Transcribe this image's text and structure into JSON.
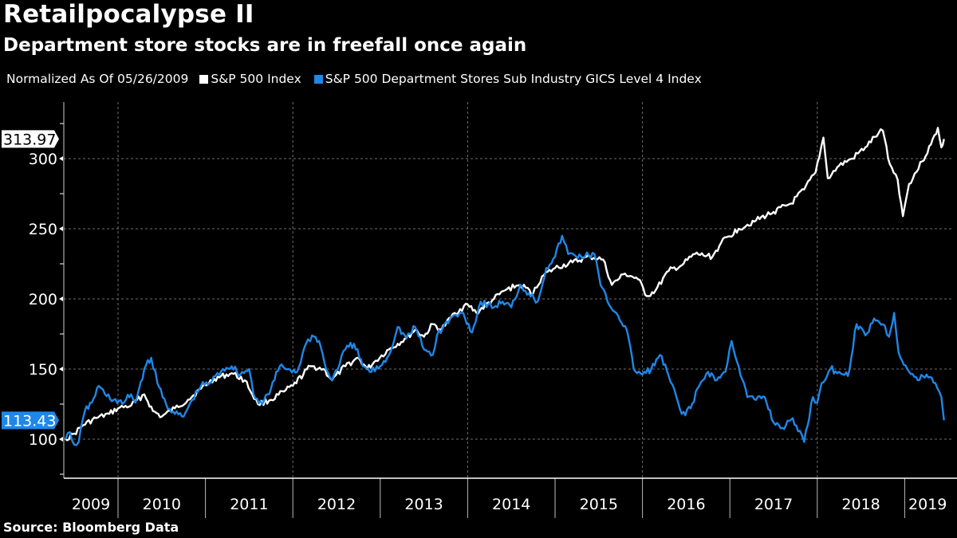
{
  "header": {
    "title": "Retailpocalypse II",
    "subtitle": "Department store stocks are in freefall once again"
  },
  "legend": {
    "note": "Normalized As Of 05/26/2009",
    "items": [
      {
        "label": "S&P 500 Index",
        "color": "#ffffff"
      },
      {
        "label": "S&P 500 Department Stores Sub Industry GICS Level 4 Index",
        "color": "#1f87e8"
      }
    ]
  },
  "footer": {
    "source": "Source: Bloomberg Data"
  },
  "chart_data": {
    "type": "line",
    "title": "Retailpocalypse II",
    "subtitle": "Department store stocks are in freefall once again",
    "xlabel": "",
    "ylabel": "",
    "ylim": [
      72,
      340
    ],
    "xlim": [
      2009.38,
      2019.55
    ],
    "yticks": [
      100,
      150,
      200,
      250,
      300
    ],
    "yminor_ticks": [
      75,
      125,
      175,
      225,
      275,
      325
    ],
    "x_categories": [
      "2009",
      "2010",
      "2011",
      "2012",
      "2013",
      "2014",
      "2015",
      "2016",
      "2017",
      "2018",
      "2019"
    ],
    "grid": true,
    "legend_position": "top-left",
    "last_values": [
      {
        "series": "S&P 500 Index",
        "value": "313.97",
        "color": "#ffffff",
        "text_color": "#000000"
      },
      {
        "series": "S&P 500 Department Stores Sub Industry GICS Level 4 Index",
        "value": "113.43",
        "color": "#1f87e8",
        "text_color": "#ffffff"
      }
    ],
    "series": [
      {
        "name": "S&P 500 Index",
        "color": "#ffffff",
        "x": [
          2009.4,
          2009.5,
          2009.6,
          2009.75,
          2009.9,
          2010.0,
          2010.15,
          2010.3,
          2010.4,
          2010.5,
          2010.65,
          2010.8,
          2010.95,
          2011.1,
          2011.3,
          2011.45,
          2011.6,
          2011.75,
          2011.9,
          2012.0,
          2012.2,
          2012.35,
          2012.45,
          2012.6,
          2012.75,
          2012.85,
          2012.95,
          2013.1,
          2013.3,
          2013.4,
          2013.5,
          2013.6,
          2013.7,
          2013.85,
          2014.0,
          2014.1,
          2014.3,
          2014.45,
          2014.6,
          2014.75,
          2014.85,
          2015.0,
          2015.2,
          2015.4,
          2015.55,
          2015.65,
          2015.8,
          2015.95,
          2016.05,
          2016.15,
          2016.3,
          2016.45,
          2016.6,
          2016.8,
          2016.9,
          2017.1,
          2017.3,
          2017.5,
          2017.7,
          2017.85,
          2017.98,
          2018.07,
          2018.12,
          2018.25,
          2018.4,
          2018.55,
          2018.7,
          2018.75,
          2018.83,
          2018.92,
          2018.98,
          2019.05,
          2019.2,
          2019.3,
          2019.38,
          2019.42,
          2019.45
        ],
        "values": [
          100,
          104,
          110,
          115,
          118,
          122,
          124,
          132,
          120,
          116,
          122,
          128,
          136,
          143,
          147,
          142,
          125,
          128,
          134,
          138,
          152,
          150,
          142,
          152,
          158,
          150,
          156,
          164,
          172,
          178,
          173,
          182,
          178,
          190,
          196,
          190,
          200,
          207,
          210,
          204,
          216,
          222,
          226,
          230,
          228,
          210,
          218,
          214,
          202,
          206,
          220,
          224,
          232,
          230,
          240,
          250,
          256,
          262,
          268,
          278,
          290,
          315,
          286,
          295,
          300,
          308,
          318,
          320,
          296,
          285,
          259,
          282,
          298,
          310,
          322,
          308,
          313.97
        ]
      },
      {
        "name": "S&P 500 Department Stores Sub Industry GICS Level 4 Index",
        "color": "#1f87e8",
        "x": [
          2009.4,
          2009.45,
          2009.5,
          2009.55,
          2009.62,
          2009.7,
          2009.78,
          2009.85,
          2009.95,
          2010.05,
          2010.15,
          2010.2,
          2010.3,
          2010.38,
          2010.45,
          2010.55,
          2010.65,
          2010.75,
          2010.85,
          2010.95,
          2011.05,
          2011.2,
          2011.3,
          2011.4,
          2011.5,
          2011.55,
          2011.65,
          2011.75,
          2011.85,
          2011.95,
          2012.05,
          2012.15,
          2012.22,
          2012.3,
          2012.38,
          2012.45,
          2012.6,
          2012.7,
          2012.8,
          2012.9,
          2013.0,
          2013.1,
          2013.2,
          2013.3,
          2013.4,
          2013.5,
          2013.6,
          2013.65,
          2013.8,
          2013.95,
          2014.05,
          2014.15,
          2014.3,
          2014.4,
          2014.5,
          2014.6,
          2014.7,
          2014.8,
          2014.9,
          2015.0,
          2015.08,
          2015.15,
          2015.3,
          2015.45,
          2015.52,
          2015.6,
          2015.7,
          2015.82,
          2015.9,
          2016.0,
          2016.1,
          2016.2,
          2016.3,
          2016.45,
          2016.55,
          2016.65,
          2016.75,
          2016.85,
          2016.95,
          2017.02,
          2017.1,
          2017.2,
          2017.3,
          2017.4,
          2017.5,
          2017.6,
          2017.7,
          2017.8,
          2017.85,
          2017.95,
          2018.0,
          2018.05,
          2018.15,
          2018.25,
          2018.35,
          2018.45,
          2018.55,
          2018.65,
          2018.75,
          2018.82,
          2018.88,
          2018.93,
          2019.05,
          2019.15,
          2019.25,
          2019.35,
          2019.42,
          2019.45
        ],
        "values": [
          100,
          105,
          96,
          98,
          120,
          126,
          138,
          132,
          128,
          125,
          132,
          126,
          150,
          158,
          140,
          125,
          118,
          116,
          128,
          138,
          140,
          150,
          152,
          146,
          150,
          132,
          125,
          136,
          152,
          150,
          148,
          168,
          174,
          170,
          150,
          142,
          164,
          168,
          152,
          148,
          152,
          160,
          180,
          172,
          180,
          164,
          160,
          174,
          186,
          190,
          176,
          198,
          194,
          198,
          194,
          210,
          204,
          198,
          222,
          230,
          245,
          232,
          230,
          232,
          210,
          198,
          190,
          178,
          150,
          146,
          150,
          160,
          145,
          118,
          122,
          138,
          148,
          142,
          148,
          170,
          152,
          130,
          128,
          130,
          112,
          108,
          114,
          106,
          98,
          130,
          126,
          140,
          150,
          148,
          145,
          182,
          174,
          186,
          182,
          173,
          190,
          162,
          148,
          142,
          146,
          140,
          130,
          113.43
        ]
      }
    ]
  }
}
